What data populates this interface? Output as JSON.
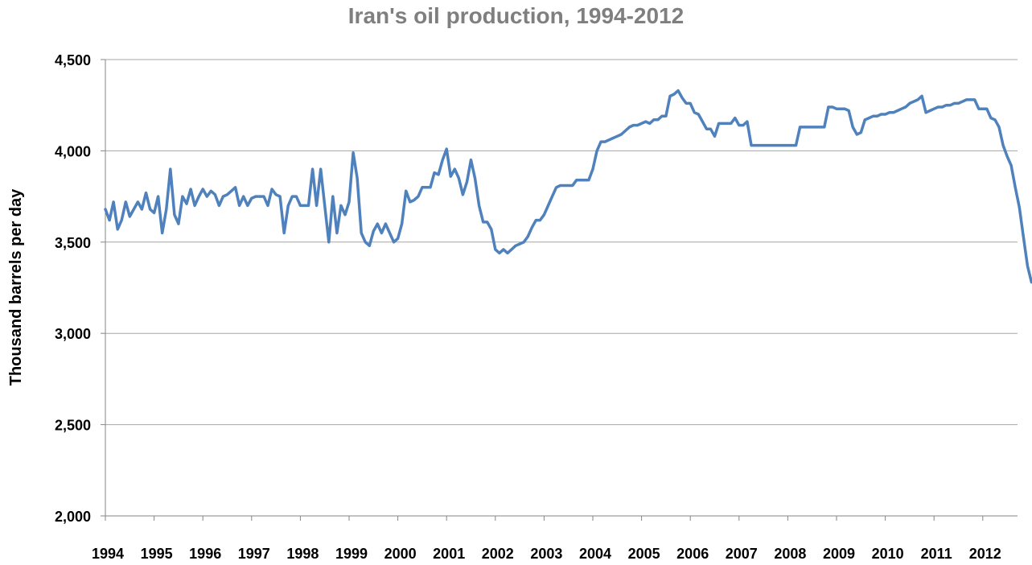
{
  "chart_data": {
    "type": "line",
    "title": "Iran's oil production, 1994-2012",
    "xlabel": "",
    "ylabel": "Thousand barrels per day",
    "ylim": [
      2000,
      4500
    ],
    "yticks": [
      2000,
      2500,
      3000,
      3500,
      4000,
      4500
    ],
    "ytick_labels": [
      "2,000",
      "2,500",
      "3,000",
      "3,500",
      "4,000",
      "4,500"
    ],
    "xtick_labels": [
      "1994",
      "1995",
      "1996",
      "1997",
      "1998",
      "1999",
      "2000",
      "2001",
      "2002",
      "2003",
      "2004",
      "2005",
      "2006",
      "2007",
      "2008",
      "2009",
      "2010",
      "2011",
      "2012"
    ],
    "grid": "horizontal",
    "legend": "none",
    "line_color": "#4f81bd",
    "x_start": "1994-01",
    "x_unit": "month",
    "series": [
      {
        "values": [
          3680,
          3620,
          3720,
          3570,
          3620,
          3720,
          3640,
          3680,
          3720,
          3680,
          3770,
          3680,
          3660,
          3750,
          3550,
          3680,
          3900,
          3650,
          3600,
          3750,
          3710,
          3790,
          3700,
          3750,
          3790,
          3750,
          3780,
          3760,
          3700,
          3750,
          3760,
          3780,
          3800,
          3700,
          3750,
          3700,
          3740,
          3750,
          3750,
          3750,
          3700,
          3790,
          3760,
          3750,
          3550,
          3700,
          3750,
          3750,
          3700,
          3700,
          3700,
          3900,
          3700,
          3900,
          3700,
          3500,
          3750,
          3550,
          3700,
          3650,
          3720,
          3990,
          3850,
          3550,
          3500,
          3480,
          3560,
          3600,
          3550,
          3600,
          3550,
          3500,
          3520,
          3600,
          3780,
          3720,
          3730,
          3750,
          3800,
          3800,
          3800,
          3880,
          3870,
          3950,
          4010,
          3860,
          3900,
          3850,
          3760,
          3830,
          3950,
          3850,
          3700,
          3610,
          3610,
          3570,
          3460,
          3440,
          3460,
          3440,
          3460,
          3480,
          3490,
          3500,
          3530,
          3580,
          3620,
          3620,
          3650,
          3700,
          3750,
          3800,
          3810,
          3810,
          3810,
          3810,
          3840,
          3840,
          3840,
          3840,
          3900,
          4000,
          4050,
          4050,
          4060,
          4070,
          4080,
          4090,
          4110,
          4130,
          4140,
          4140,
          4150,
          4160,
          4150,
          4170,
          4170,
          4190,
          4190,
          4300,
          4310,
          4330,
          4290,
          4260,
          4260,
          4210,
          4200,
          4160,
          4120,
          4120,
          4080,
          4150,
          4150,
          4150,
          4150,
          4180,
          4140,
          4140,
          4160,
          4030,
          4030,
          4030,
          4030,
          4030,
          4030,
          4030,
          4030,
          4030,
          4030,
          4030,
          4030,
          4130,
          4130,
          4130,
          4130,
          4130,
          4130,
          4130,
          4240,
          4240,
          4230,
          4230,
          4230,
          4220,
          4130,
          4090,
          4100,
          4170,
          4180,
          4190,
          4190,
          4200,
          4200,
          4210,
          4210,
          4220,
          4230,
          4240,
          4260,
          4270,
          4280,
          4300,
          4210,
          4220,
          4230,
          4240,
          4240,
          4250,
          4250,
          4260,
          4260,
          4270,
          4280,
          4280,
          4280,
          4230,
          4230,
          4230,
          4180,
          4170,
          4130,
          4030,
          3970,
          3920,
          3800,
          3690,
          3530,
          3370,
          3280
        ]
      }
    ]
  }
}
